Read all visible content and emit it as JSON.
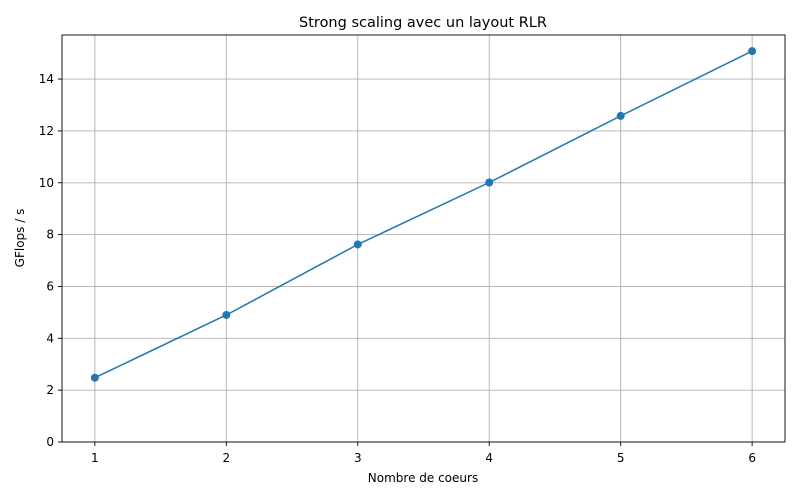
{
  "chart_data": {
    "type": "line",
    "title": "Strong scaling avec un layout RLR",
    "xlabel": "Nombre de coeurs",
    "ylabel": "GFlops / s",
    "x": [
      1,
      2,
      3,
      4,
      5,
      6
    ],
    "series": [
      {
        "values": [
          2.48,
          4.9,
          7.62,
          10.01,
          12.58,
          15.08
        ]
      }
    ],
    "xticks": [
      "1",
      "2",
      "3",
      "4",
      "5",
      "6"
    ],
    "yticks": [
      "0",
      "2",
      "4",
      "6",
      "8",
      "10",
      "12",
      "14"
    ],
    "xlim": [
      0.75,
      6.25
    ],
    "ylim": [
      0,
      15.7
    ],
    "grid": true,
    "legend": false,
    "colors": {
      "line": "#1f77b4",
      "grid": "#b0b0b0"
    }
  }
}
